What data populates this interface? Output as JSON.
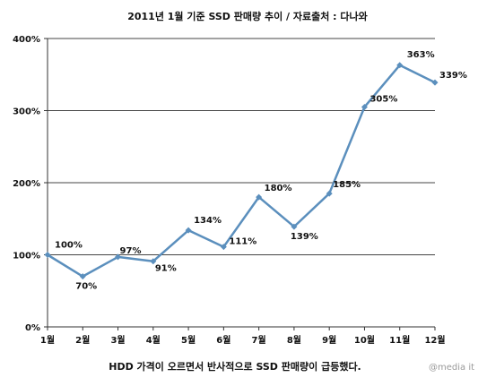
{
  "chart_data": {
    "type": "line",
    "title": "2011년 1월 기준 SSD 판매량 추이 / 자료출처 : 다나와",
    "categories": [
      "1월",
      "2월",
      "3월",
      "4월",
      "5월",
      "6월",
      "7월",
      "8월",
      "9월",
      "10월",
      "11월",
      "12월"
    ],
    "series": [
      {
        "values": [
          100,
          70,
          97,
          91,
          134,
          111,
          180,
          139,
          185,
          305,
          363,
          339
        ]
      }
    ],
    "data_labels": [
      "100%",
      "70%",
      "97%",
      "91%",
      "134%",
      "111%",
      "180%",
      "139%",
      "185%",
      "305%",
      "363%",
      "339%"
    ],
    "y_ticks": [
      "0%",
      "100%",
      "200%",
      "300%",
      "400%"
    ],
    "ylim": [
      0,
      400
    ],
    "grid": true,
    "legend": "none",
    "line_color": "#5b8fbd",
    "xlabel": "",
    "ylabel": ""
  },
  "caption": "HDD 가격이 오르면서 반사적으로 SSD 판매량이 급등했다.",
  "credit": "@media it"
}
